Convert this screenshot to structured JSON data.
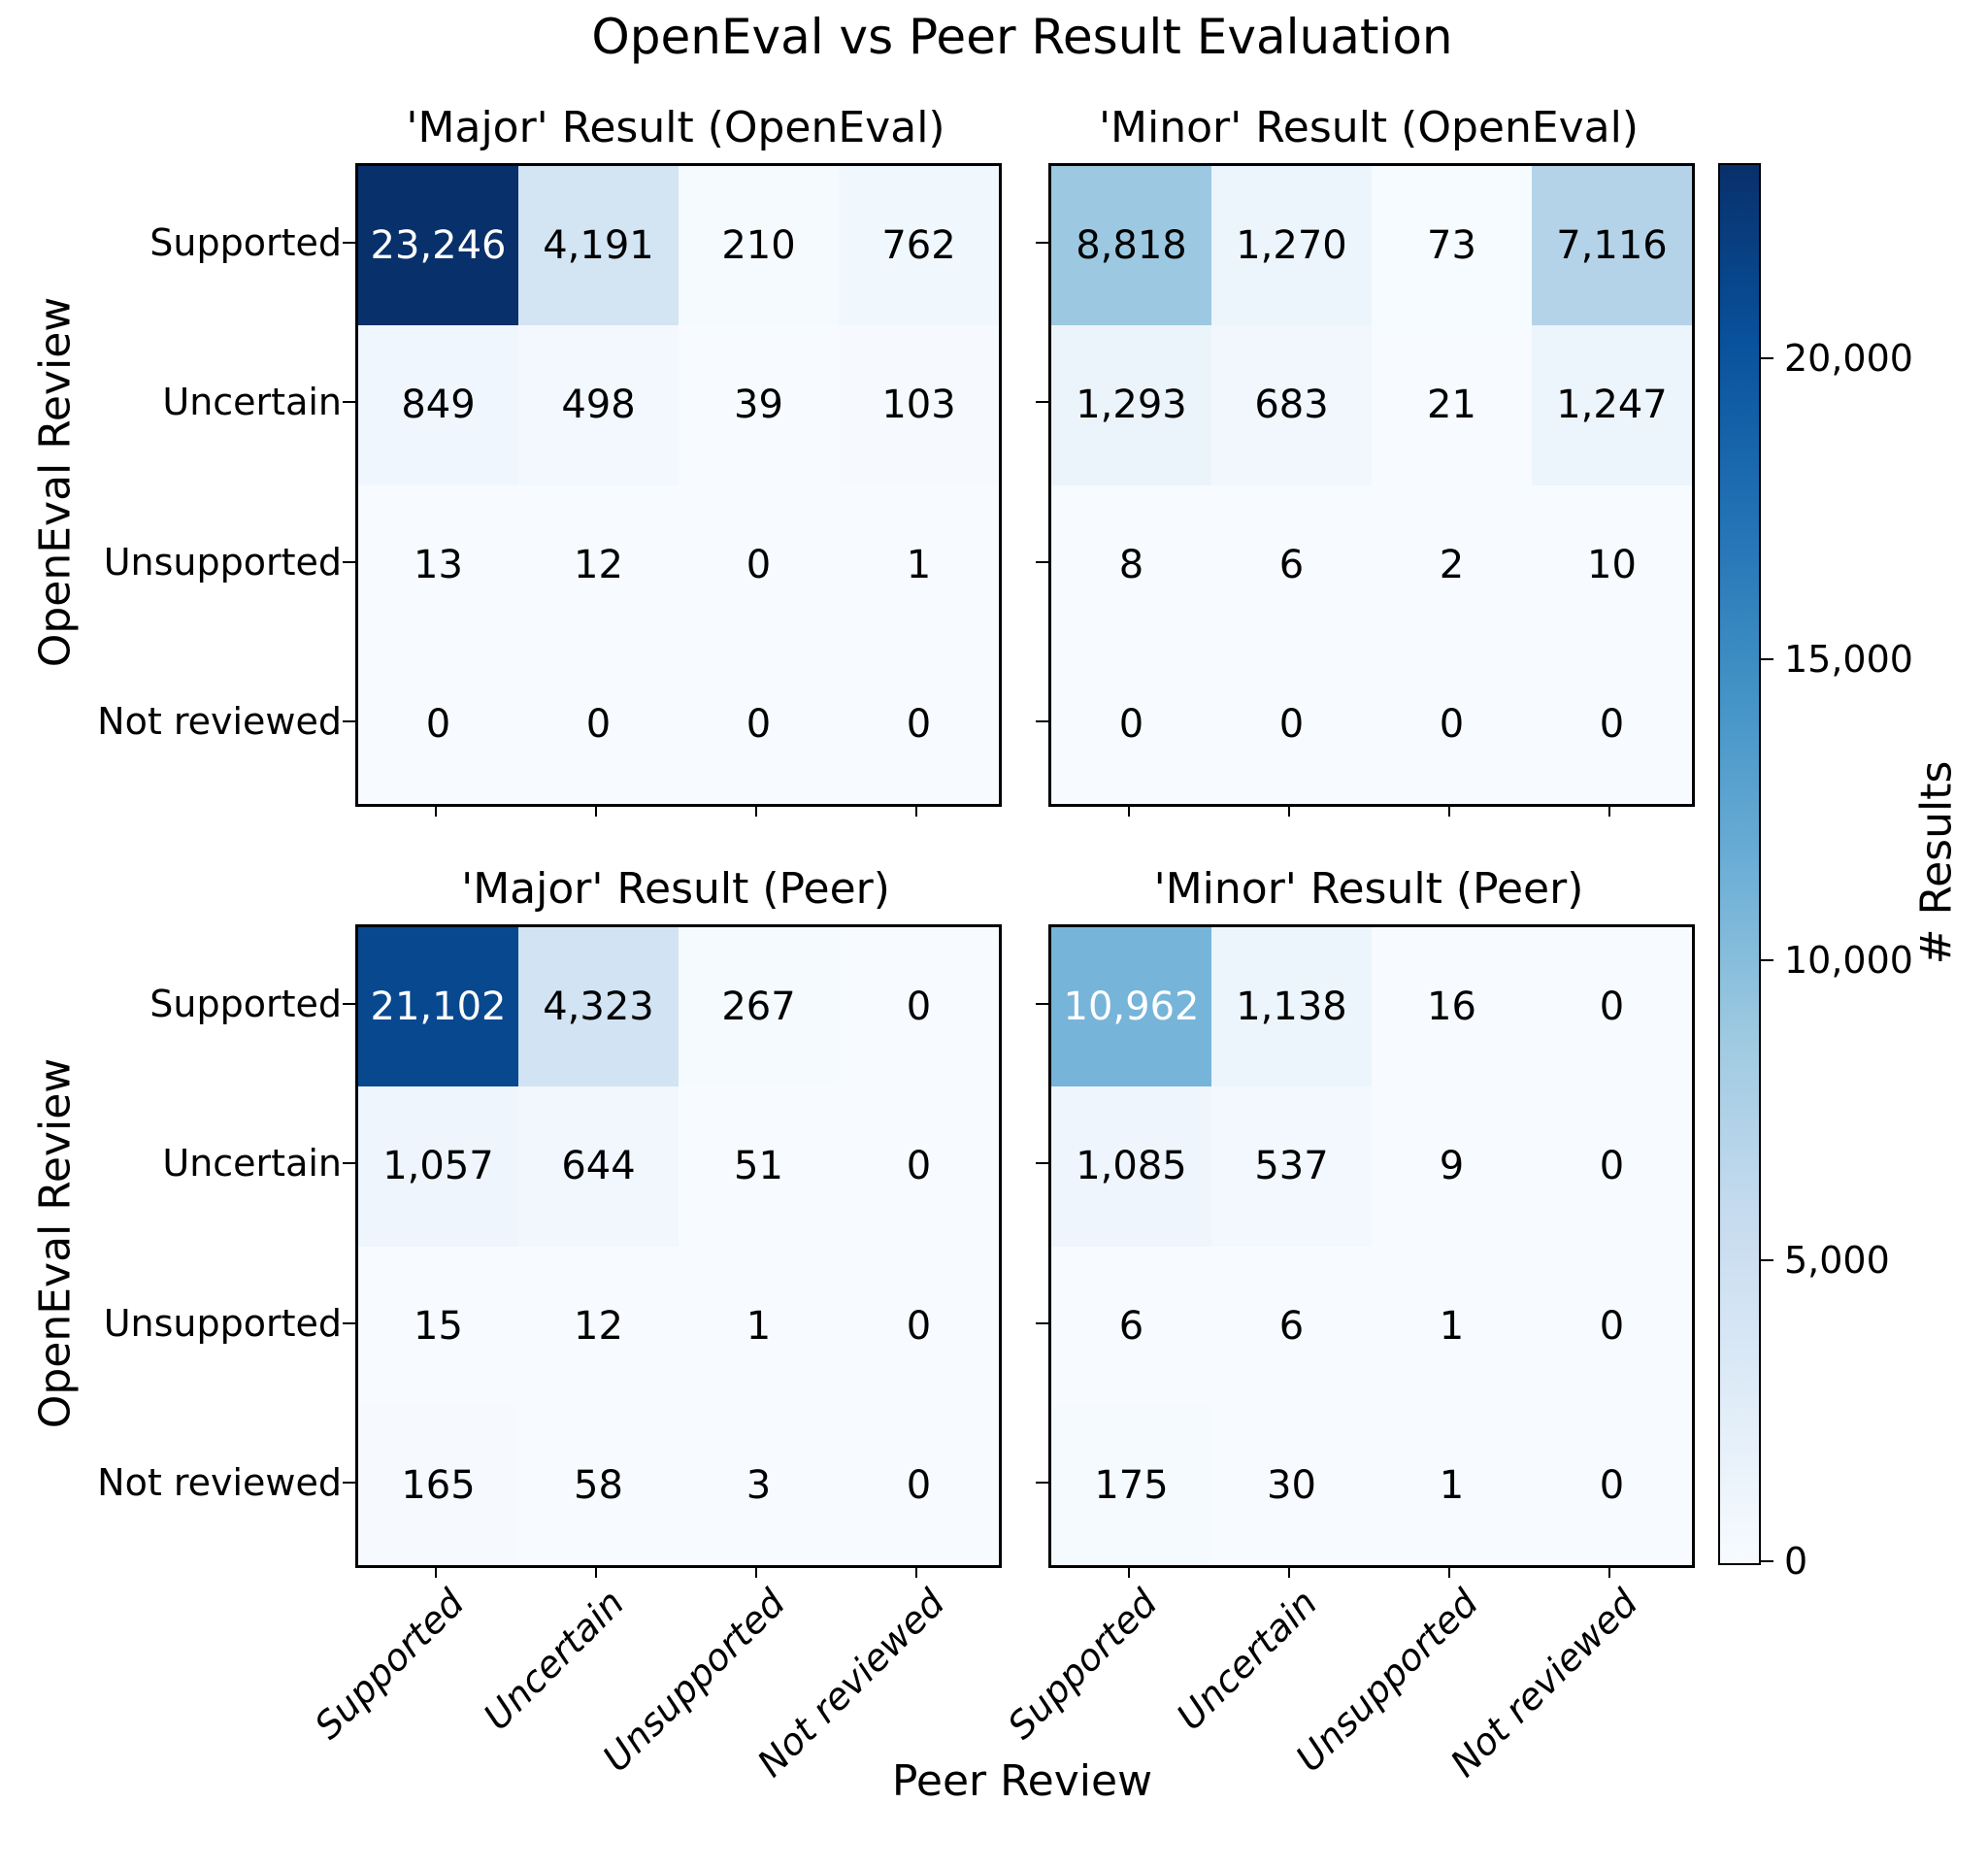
{
  "chart_data": {
    "type": "heatmap",
    "title": "OpenEval vs Peer Result Evaluation",
    "xlabel": "Peer Review",
    "ylabel": "OpenEval Review",
    "row_labels": [
      "Supported",
      "Uncertain",
      "Unsupported",
      "Not reviewed"
    ],
    "col_labels": [
      "Supported",
      "Uncertain",
      "Unsupported",
      "Not reviewed"
    ],
    "vmin": 0,
    "vmax": 23246,
    "grid": false,
    "panels": [
      {
        "title": "'Major' Result (OpenEval)",
        "values": [
          [
            23246,
            4191,
            210,
            762
          ],
          [
            849,
            498,
            39,
            103
          ],
          [
            13,
            12,
            0,
            1
          ],
          [
            0,
            0,
            0,
            0
          ]
        ]
      },
      {
        "title": "'Minor' Result (OpenEval)",
        "values": [
          [
            8818,
            1270,
            73,
            7116
          ],
          [
            1293,
            683,
            21,
            1247
          ],
          [
            8,
            6,
            2,
            10
          ],
          [
            0,
            0,
            0,
            0
          ]
        ]
      },
      {
        "title": "'Major' Result (Peer)",
        "values": [
          [
            21102,
            4323,
            267,
            0
          ],
          [
            1057,
            644,
            51,
            0
          ],
          [
            15,
            12,
            1,
            0
          ],
          [
            165,
            58,
            3,
            0
          ]
        ]
      },
      {
        "title": "'Minor' Result (Peer)",
        "values": [
          [
            10962,
            1138,
            16,
            0
          ],
          [
            1085,
            537,
            9,
            0
          ],
          [
            6,
            6,
            1,
            0
          ],
          [
            175,
            30,
            1,
            0
          ]
        ]
      }
    ],
    "colorbar": {
      "label": "# Results",
      "ticks": [
        0,
        5000,
        10000,
        15000,
        20000
      ],
      "colormap_name": "Blues",
      "colormap_anchors": [
        "#f7fbff",
        "#deebf7",
        "#c6dbef",
        "#9ecae1",
        "#6baed6",
        "#4292c6",
        "#2171b5",
        "#08519c",
        "#08306b"
      ]
    },
    "annotation_colors": {
      "dark_text": "#000000",
      "light_text": "#ffffff",
      "light_text_threshold": 10000
    }
  }
}
